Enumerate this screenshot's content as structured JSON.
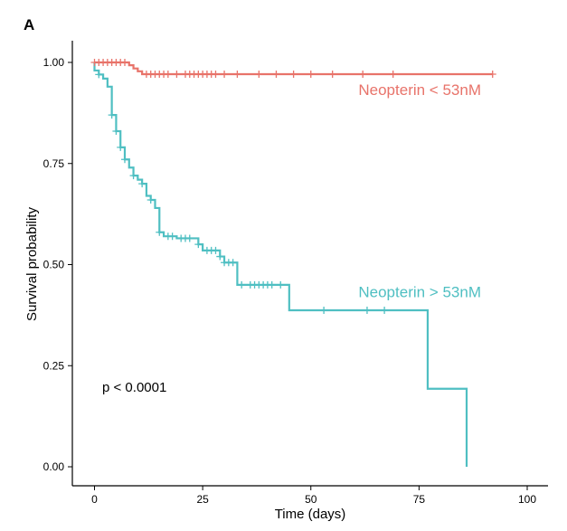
{
  "panel_label": "A",
  "chart_data": {
    "type": "line",
    "subtype": "kaplan-meier",
    "title": "",
    "xlabel": "Time (days)",
    "ylabel": "Survival probability",
    "xlim": [
      -5,
      105
    ],
    "ylim": [
      0,
      1.0
    ],
    "xticks": [
      0,
      25,
      50,
      75,
      100
    ],
    "yticks": [
      0.0,
      0.25,
      0.5,
      0.75,
      1.0
    ],
    "ytick_labels": [
      "0.00",
      "0.25",
      "0.50",
      "0.75",
      "1.00"
    ],
    "grid": false,
    "annotations": [
      {
        "text": "p < 0.0001",
        "x": 2,
        "y": 0.19
      }
    ],
    "series": [
      {
        "name": "Neopterin < 53nM",
        "color": "#E8736A",
        "label_position": {
          "x": 61,
          "y": 0.92
        },
        "steps": [
          [
            0,
            1.0
          ],
          [
            8,
            0.993
          ],
          [
            9,
            0.985
          ],
          [
            10,
            0.978
          ],
          [
            11,
            0.971
          ],
          [
            92,
            0.971
          ]
        ],
        "censors": [
          [
            0,
            1.0
          ],
          [
            1,
            1.0
          ],
          [
            2,
            1.0
          ],
          [
            3,
            1.0
          ],
          [
            4,
            1.0
          ],
          [
            5,
            1.0
          ],
          [
            6,
            1.0
          ],
          [
            7,
            1.0
          ],
          [
            12,
            0.971
          ],
          [
            13,
            0.971
          ],
          [
            14,
            0.971
          ],
          [
            15,
            0.971
          ],
          [
            16,
            0.971
          ],
          [
            17,
            0.971
          ],
          [
            19,
            0.971
          ],
          [
            21,
            0.971
          ],
          [
            22,
            0.971
          ],
          [
            23,
            0.971
          ],
          [
            24,
            0.971
          ],
          [
            25,
            0.971
          ],
          [
            26,
            0.971
          ],
          [
            27,
            0.971
          ],
          [
            28,
            0.971
          ],
          [
            30,
            0.971
          ],
          [
            33,
            0.971
          ],
          [
            38,
            0.971
          ],
          [
            42,
            0.971
          ],
          [
            46,
            0.971
          ],
          [
            50,
            0.971
          ],
          [
            55,
            0.971
          ],
          [
            62,
            0.971
          ],
          [
            69,
            0.971
          ],
          [
            92,
            0.971
          ]
        ]
      },
      {
        "name": "Neopterin > 53nM",
        "color": "#4FBFC2",
        "label_position": {
          "x": 61,
          "y": 0.42
        },
        "steps": [
          [
            0,
            1.0
          ],
          [
            0,
            0.98
          ],
          [
            1,
            0.97
          ],
          [
            2,
            0.96
          ],
          [
            3,
            0.94
          ],
          [
            4,
            0.93
          ],
          [
            4,
            0.87
          ],
          [
            5,
            0.83
          ],
          [
            6,
            0.79
          ],
          [
            7,
            0.76
          ],
          [
            8,
            0.74
          ],
          [
            9,
            0.72
          ],
          [
            10,
            0.71
          ],
          [
            11,
            0.7
          ],
          [
            12,
            0.67
          ],
          [
            13,
            0.66
          ],
          [
            14,
            0.64
          ],
          [
            15,
            0.58
          ],
          [
            16,
            0.57
          ],
          [
            19,
            0.565
          ],
          [
            24,
            0.55
          ],
          [
            25,
            0.535
          ],
          [
            29,
            0.52
          ],
          [
            30,
            0.505
          ],
          [
            31,
            0.505
          ],
          [
            33,
            0.45
          ],
          [
            45,
            0.387
          ],
          [
            77,
            0.387
          ],
          [
            77,
            0.193
          ],
          [
            86,
            0.193
          ],
          [
            86,
            0.0
          ]
        ],
        "censors": [
          [
            1,
            0.97
          ],
          [
            4,
            0.87
          ],
          [
            5,
            0.83
          ],
          [
            6,
            0.79
          ],
          [
            7,
            0.76
          ],
          [
            9,
            0.72
          ],
          [
            11,
            0.7
          ],
          [
            13,
            0.66
          ],
          [
            15,
            0.58
          ],
          [
            17,
            0.57
          ],
          [
            18,
            0.57
          ],
          [
            20,
            0.565
          ],
          [
            21,
            0.565
          ],
          [
            22,
            0.565
          ],
          [
            24,
            0.55
          ],
          [
            26,
            0.535
          ],
          [
            27,
            0.535
          ],
          [
            28,
            0.535
          ],
          [
            29,
            0.52
          ],
          [
            30,
            0.505
          ],
          [
            31,
            0.505
          ],
          [
            32,
            0.505
          ],
          [
            34,
            0.45
          ],
          [
            36,
            0.45
          ],
          [
            37,
            0.45
          ],
          [
            38,
            0.45
          ],
          [
            39,
            0.45
          ],
          [
            40,
            0.45
          ],
          [
            41,
            0.45
          ],
          [
            43,
            0.45
          ],
          [
            53,
            0.387
          ],
          [
            63,
            0.387
          ],
          [
            67,
            0.387
          ]
        ]
      }
    ]
  }
}
